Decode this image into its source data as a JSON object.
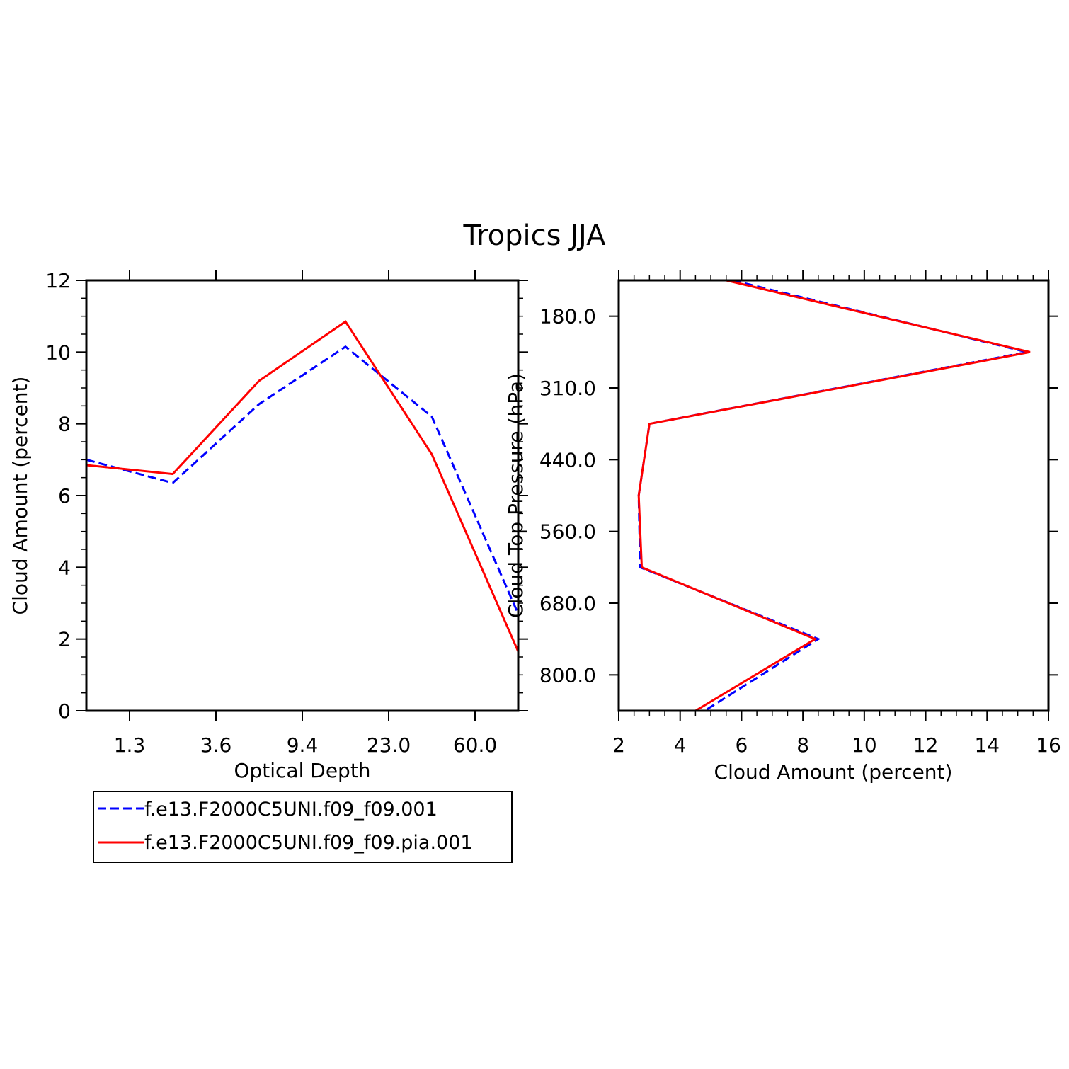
{
  "title": "Tropics JJA",
  "colors": {
    "series1": "#0000ff",
    "series2": "#ff0000",
    "axis": "#000000",
    "background": "#ffffff"
  },
  "legend": {
    "placement": "below-left",
    "entries": [
      {
        "label": "f.e13.F2000C5UNI.f09_f09.001",
        "color": "#0000ff",
        "style": "dashed"
      },
      {
        "label": "f.e13.F2000C5UNI.f09_f09.pia.001",
        "color": "#ff0000",
        "style": "solid"
      }
    ]
  },
  "chart_data": [
    {
      "type": "line",
      "title": "",
      "xlabel": "Optical Depth",
      "ylabel": "Cloud Amount (percent)",
      "x_bins": [
        0,
        1,
        2,
        3,
        4,
        5
      ],
      "x_tick_bins": [
        0.5,
        1.5,
        2.5,
        3.5,
        4.5
      ],
      "x_tick_labels": [
        "1.3",
        "3.6",
        "9.4",
        "23.0",
        "60.0"
      ],
      "xlim_bins": [
        0,
        5
      ],
      "ylim": [
        0,
        12
      ],
      "y_ticks": [
        0,
        2,
        4,
        6,
        8,
        10,
        12
      ],
      "y_tick_labels": [
        "0",
        "2",
        "4",
        "6",
        "8",
        "10",
        "12"
      ],
      "series": [
        {
          "name": "f.e13.F2000C5UNI.f09_f09.001",
          "color": "#0000ff",
          "dashed": true,
          "values": [
            7.0,
            6.35,
            8.55,
            10.15,
            8.2,
            2.7
          ]
        },
        {
          "name": "f.e13.F2000C5UNI.f09_f09.pia.001",
          "color": "#ff0000",
          "dashed": false,
          "values": [
            6.85,
            6.6,
            9.2,
            10.85,
            7.15,
            1.65
          ]
        }
      ]
    },
    {
      "type": "line",
      "title": "",
      "xlabel": "Cloud Amount (percent)",
      "ylabel": "Cloud Top Pressure (hPa)",
      "xlim": [
        2,
        16
      ],
      "x_ticks": [
        2,
        4,
        6,
        8,
        10,
        12,
        14,
        16
      ],
      "x_tick_labels": [
        "2",
        "4",
        "6",
        "8",
        "10",
        "12",
        "14",
        "16"
      ],
      "y_bins": [
        0,
        1,
        2,
        3,
        4,
        5,
        6
      ],
      "ylim_bins": [
        0,
        6
      ],
      "y_tick_bins": [
        0.5,
        1.5,
        2.5,
        3.5,
        4.5,
        5.5
      ],
      "y_tick_labels": [
        "180.0",
        "310.0",
        "440.0",
        "560.0",
        "680.0",
        "800.0"
      ],
      "series": [
        {
          "name": "f.e13.F2000C5UNI.f09_f09.001",
          "color": "#0000ff",
          "dashed": true,
          "values": [
            5.7,
            15.3,
            3.0,
            2.65,
            2.7,
            8.5,
            4.8
          ]
        },
        {
          "name": "f.e13.F2000C5UNI.f09_f09.pia.001",
          "color": "#ff0000",
          "dashed": false,
          "values": [
            5.5,
            15.4,
            3.0,
            2.65,
            2.75,
            8.4,
            4.5
          ]
        }
      ]
    }
  ]
}
